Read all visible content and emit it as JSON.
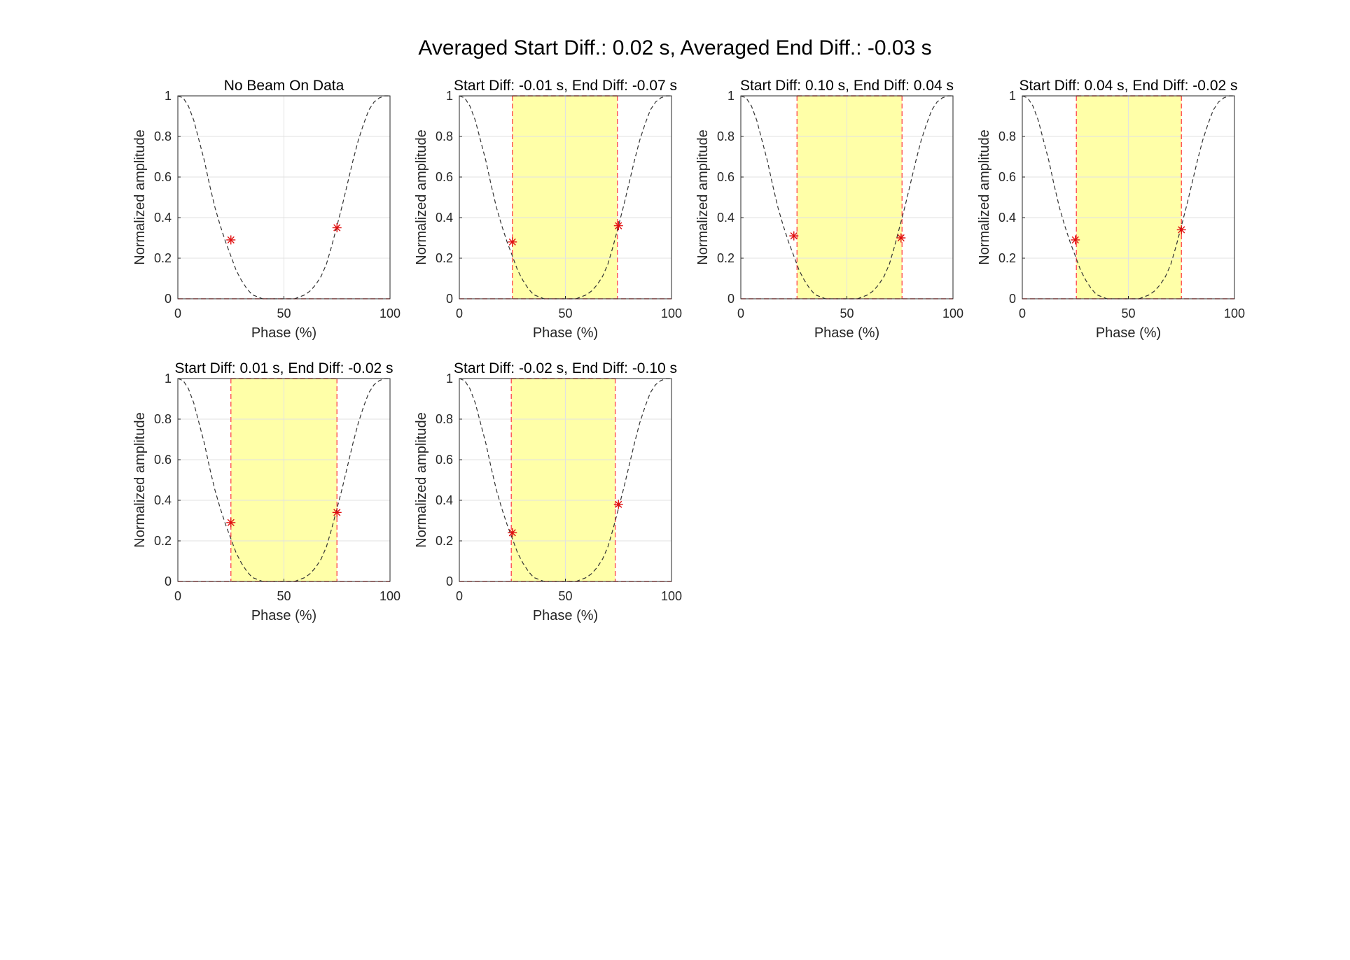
{
  "figure": {
    "suptitle": "Averaged Start Diff.: 0.02 s, Averaged End Diff.: -0.03 s"
  },
  "colors": {
    "curve": "#333333",
    "marker": "#e01010",
    "boundary": "#ff5a5a",
    "beam_fill": "#ffffa8",
    "grid": "#e2e2e2",
    "axes": "#262626"
  },
  "curve_phase": [
    0,
    2.5,
    5,
    7.5,
    10,
    12.5,
    15,
    17.5,
    20,
    22.5,
    25,
    27.5,
    30,
    32.5,
    35,
    37.5,
    40,
    42.5,
    45,
    47.5,
    50,
    52.5,
    55,
    57.5,
    60,
    62.5,
    65,
    67.5,
    70,
    72.5,
    75,
    77.5,
    80,
    82.5,
    85,
    87.5,
    90,
    92.5,
    95,
    97.5,
    100
  ],
  "curve_amplitude": [
    1.0,
    0.99,
    0.95,
    0.88,
    0.78,
    0.68,
    0.56,
    0.45,
    0.36,
    0.28,
    0.21,
    0.14,
    0.09,
    0.05,
    0.02,
    0.01,
    0.0,
    0.0,
    0.0,
    0.0,
    0.0,
    0.0,
    0.0,
    0.01,
    0.02,
    0.04,
    0.07,
    0.11,
    0.17,
    0.26,
    0.36,
    0.46,
    0.57,
    0.68,
    0.78,
    0.86,
    0.93,
    0.97,
    0.99,
    1.0,
    1.0
  ],
  "chart_data": [
    {
      "type": "line",
      "title": "No Beam On Data",
      "xlabel": "Phase (%)",
      "ylabel": "Normalized amplitude",
      "xlim": [
        0,
        100
      ],
      "ylim": [
        0,
        1
      ],
      "xticks": [
        "0",
        "50",
        "100"
      ],
      "yticks": [
        "0",
        "0.2",
        "0.4",
        "0.6",
        "0.8",
        "1"
      ],
      "grid": true,
      "beam_on": null,
      "markers": [
        {
          "x": 25,
          "y": 0.29
        },
        {
          "x": 75,
          "y": 0.35
        }
      ]
    },
    {
      "type": "line",
      "title": "Start Diff: -0.01 s, End Diff: -0.07 s",
      "xlabel": "Phase (%)",
      "ylabel": "Normalized amplitude",
      "xlim": [
        0,
        100
      ],
      "ylim": [
        0,
        1
      ],
      "xticks": [
        "0",
        "50",
        "100"
      ],
      "yticks": [
        "0",
        "0.2",
        "0.4",
        "0.6",
        "0.8",
        "1"
      ],
      "grid": true,
      "beam_on": [
        25,
        74.5
      ],
      "markers": [
        {
          "x": 25,
          "y": 0.28
        },
        {
          "x": 75,
          "y": 0.36
        }
      ]
    },
    {
      "type": "line",
      "title": "Start Diff: 0.10 s, End Diff: 0.04 s",
      "xlabel": "Phase (%)",
      "ylabel": "Normalized amplitude",
      "xlim": [
        0,
        100
      ],
      "ylim": [
        0,
        1
      ],
      "xticks": [
        "0",
        "50",
        "100"
      ],
      "yticks": [
        "0",
        "0.2",
        "0.4",
        "0.6",
        "0.8",
        "1"
      ],
      "grid": true,
      "beam_on": [
        26.5,
        76
      ],
      "markers": [
        {
          "x": 25,
          "y": 0.31
        },
        {
          "x": 75.5,
          "y": 0.3
        }
      ]
    },
    {
      "type": "line",
      "title": "Start Diff: 0.04 s, End Diff: -0.02 s",
      "xlabel": "Phase (%)",
      "ylabel": "Normalized amplitude",
      "xlim": [
        0,
        100
      ],
      "ylim": [
        0,
        1
      ],
      "xticks": [
        "0",
        "50",
        "100"
      ],
      "yticks": [
        "0",
        "0.2",
        "0.4",
        "0.6",
        "0.8",
        "1"
      ],
      "grid": true,
      "beam_on": [
        25.5,
        75
      ],
      "markers": [
        {
          "x": 25,
          "y": 0.29
        },
        {
          "x": 75,
          "y": 0.34
        }
      ]
    },
    {
      "type": "line",
      "title": "Start Diff: 0.01 s, End Diff: -0.02 s",
      "xlabel": "Phase (%)",
      "ylabel": "Normalized amplitude",
      "xlim": [
        0,
        100
      ],
      "ylim": [
        0,
        1
      ],
      "xticks": [
        "0",
        "50",
        "100"
      ],
      "yticks": [
        "0",
        "0.2",
        "0.4",
        "0.6",
        "0.8",
        "1"
      ],
      "grid": true,
      "beam_on": [
        25,
        75
      ],
      "markers": [
        {
          "x": 25,
          "y": 0.29
        },
        {
          "x": 75,
          "y": 0.34
        }
      ]
    },
    {
      "type": "line",
      "title": "Start Diff: -0.02 s, End Diff: -0.10 s",
      "xlabel": "Phase (%)",
      "ylabel": "Normalized amplitude",
      "xlim": [
        0,
        100
      ],
      "ylim": [
        0,
        1
      ],
      "xticks": [
        "0",
        "50",
        "100"
      ],
      "yticks": [
        "0",
        "0.2",
        "0.4",
        "0.6",
        "0.8",
        "1"
      ],
      "grid": true,
      "beam_on": [
        24.5,
        73.5
      ],
      "markers": [
        {
          "x": 25,
          "y": 0.24
        },
        {
          "x": 75,
          "y": 0.38
        }
      ]
    }
  ]
}
